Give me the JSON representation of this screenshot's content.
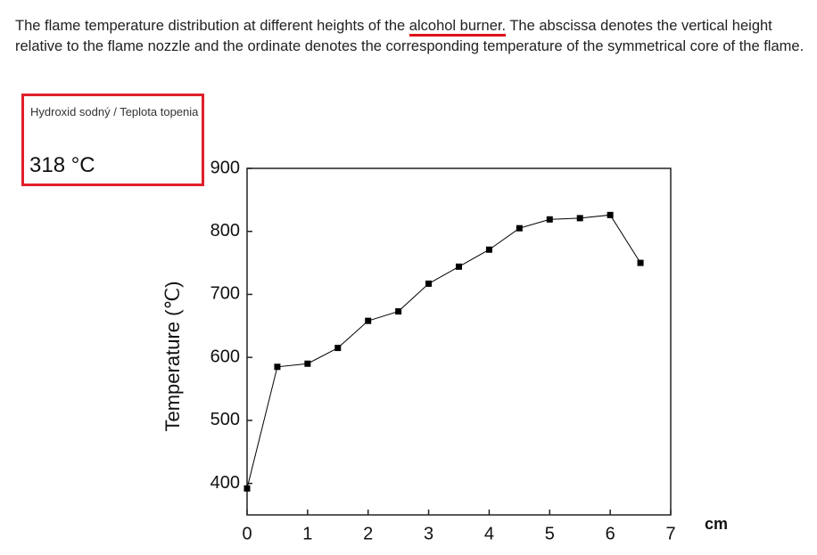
{
  "paragraph": [
    "The flame temperature distribution at different heights of the",
    "alcohol burner.",
    "The abscissa denotes the vertical height relative to the flame nozzle and the ordinate denotes the corresponding temperature of the symmetrical core of the flame."
  ],
  "info_box": {
    "label": "Hydroxid sodný / Teplota topenia",
    "value": "318 °C"
  },
  "chart_data": {
    "type": "line",
    "y_label": "Temperature (℃)",
    "x_unit": "cm",
    "x": [
      0,
      0.5,
      1,
      1.5,
      2,
      2.5,
      3,
      3.5,
      4,
      4.5,
      5,
      5.5,
      6,
      6.5
    ],
    "series": [
      {
        "name": "Temperature",
        "color": "#000000",
        "values": [
          392,
          585,
          590,
          615,
          658,
          673,
          717,
          744,
          771,
          805,
          819,
          821,
          826,
          750
        ]
      }
    ],
    "xlim": [
      0,
      7
    ],
    "xticks": [
      0,
      1,
      2,
      3,
      4,
      5,
      6,
      7
    ],
    "ylim": [
      350,
      900
    ],
    "yticks": [
      400,
      500,
      600,
      700,
      800,
      900
    ]
  }
}
